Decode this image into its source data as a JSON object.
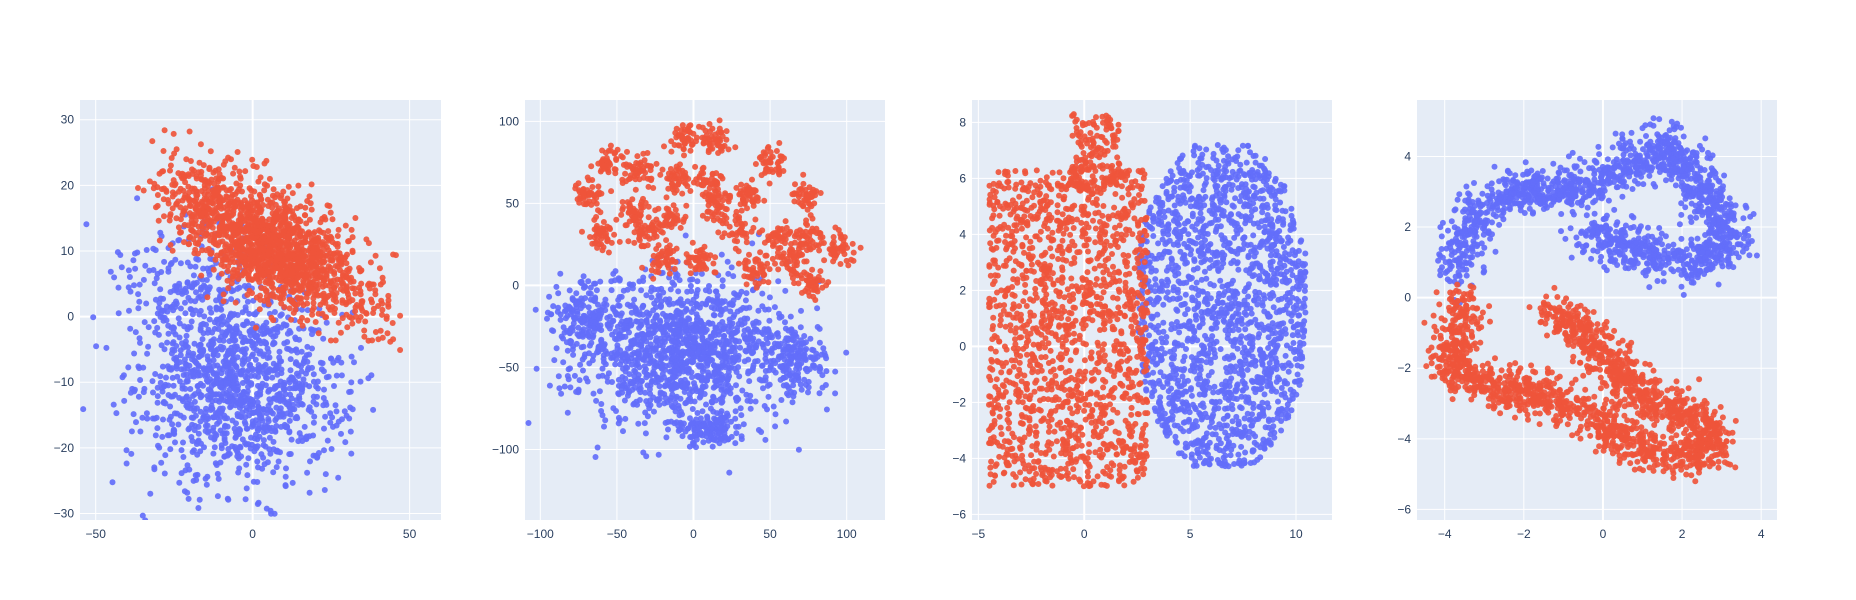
{
  "colors": {
    "plot_bg": "#e5ecf6",
    "grid": "#ffffff",
    "tick_text": "#2a3f5f",
    "class_a": "#636efa",
    "class_b": "#ef553b"
  },
  "chart_data": [
    {
      "type": "scatter",
      "xlim": [
        -55,
        60
      ],
      "ylim": [
        -31,
        33
      ],
      "xticks": [
        -50,
        0,
        50
      ],
      "xtick_labels": [
        "−50",
        "0",
        "50"
      ],
      "yticks": [
        -30,
        -20,
        -10,
        0,
        10,
        20,
        30
      ],
      "ytick_labels": [
        "−30",
        "−20",
        "−10",
        "0",
        "10",
        "20",
        "30"
      ],
      "grid": true,
      "series": [
        {
          "color_key": "class_a",
          "clusters": [
            {
              "cx": -3,
              "cy": -11,
              "sx": 16,
              "sy": 7,
              "n": 1100
            },
            {
              "cx": -18,
              "cy": 4,
              "sx": 13,
              "sy": 6,
              "n": 260
            }
          ]
        },
        {
          "color_key": "class_b",
          "clusters": [
            {
              "cx": 8,
              "cy": 10,
              "sx": 12,
              "sy": 4.5,
              "rho": -0.45,
              "n": 1200
            },
            {
              "cx": -13,
              "cy": 17,
              "sx": 9,
              "sy": 4,
              "rho": -0.3,
              "n": 320
            },
            {
              "cx": 33,
              "cy": 2,
              "sx": 7,
              "sy": 3,
              "rho": -0.5,
              "n": 80
            }
          ]
        }
      ]
    },
    {
      "type": "scatter",
      "xlim": [
        -110,
        125
      ],
      "ylim": [
        -143,
        113
      ],
      "xticks": [
        -100,
        -50,
        0,
        50,
        100
      ],
      "xtick_labels": [
        "−100",
        "−50",
        "0",
        "50",
        "100"
      ],
      "yticks": [
        -100,
        -50,
        0,
        50,
        100
      ],
      "ytick_labels": [
        "−100",
        "−50",
        "0",
        "50",
        "100"
      ],
      "grid": true,
      "series": [
        {
          "color_key": "class_a",
          "clusters": [
            {
              "cx": -5,
              "cy": -40,
              "sx": 36,
              "sy": 22,
              "n": 1300
            },
            {
              "cx": -72,
              "cy": -20,
              "sx": 10,
              "sy": 12,
              "n": 150
            },
            {
              "cx": 65,
              "cy": -45,
              "sx": 10,
              "sy": 10,
              "n": 120
            },
            {
              "cx": 10,
              "cy": -88,
              "sx": 12,
              "sy": 5,
              "n": 120
            }
          ]
        },
        {
          "color_key": "class_b",
          "blobs": {
            "centers": [
              [
                -5,
                90
              ],
              [
                15,
                88
              ],
              [
                -55,
                75
              ],
              [
                -35,
                70
              ],
              [
                -12,
                65
              ],
              [
                10,
                62
              ],
              [
                50,
                75
              ],
              [
                -70,
                55
              ],
              [
                -40,
                45
              ],
              [
                -15,
                40
              ],
              [
                15,
                48
              ],
              [
                35,
                55
              ],
              [
                73,
                55
              ],
              [
                -60,
                30
              ],
              [
                -30,
                32
              ],
              [
                30,
                35
              ],
              [
                55,
                28
              ],
              [
                75,
                28
              ],
              [
                95,
                22
              ],
              [
                -20,
                15
              ],
              [
                5,
                15
              ],
              [
                40,
                10
              ],
              [
                65,
                15
              ],
              [
                78,
                0
              ]
            ],
            "s": 5,
            "n": 45
          }
        }
      ]
    },
    {
      "type": "scatter",
      "xlim": [
        -5.3,
        11.7
      ],
      "ylim": [
        -6.2,
        8.8
      ],
      "xticks": [
        -5,
        0,
        5,
        10
      ],
      "xtick_labels": [
        "−5",
        "0",
        "5",
        "10"
      ],
      "yticks": [
        -6,
        -4,
        -2,
        0,
        2,
        4,
        6,
        8
      ],
      "ytick_labels": [
        "−6",
        "−4",
        "−2",
        "0",
        "2",
        "4",
        "6",
        "8"
      ],
      "grid": true,
      "series": [
        {
          "color_key": "class_a",
          "uniform": [
            {
              "x0": 2.5,
              "x1": 10.5,
              "y0": -4.3,
              "y1": 7.2,
              "n": 1700,
              "ellipse": true
            }
          ]
        },
        {
          "color_key": "class_b",
          "uniform": [
            {
              "x0": -4.5,
              "x1": 3,
              "y0": -5,
              "y1": 6.3,
              "n": 1500,
              "ellipse": false
            },
            {
              "x0": -0.6,
              "x1": 1.7,
              "y0": 5.5,
              "y1": 8.3,
              "n": 160,
              "ellipse": false
            }
          ]
        }
      ]
    },
    {
      "type": "scatter",
      "xlim": [
        -4.7,
        4.4
      ],
      "ylim": [
        -6.3,
        5.6
      ],
      "xticks": [
        -4,
        -2,
        0,
        2,
        4
      ],
      "xtick_labels": [
        "−4",
        "−2",
        "0",
        "2",
        "4"
      ],
      "yticks": [
        -6,
        -4,
        -2,
        0,
        2,
        4
      ],
      "ytick_labels": [
        "−6",
        "−4",
        "−2",
        "0",
        "2",
        "4"
      ],
      "grid": true,
      "series": [
        {
          "color_key": "class_a",
          "path": {
            "points": [
              [
                -3.8,
                0.6
              ],
              [
                -3.3,
                2.2
              ],
              [
                -2.4,
                3.0
              ],
              [
                -1.0,
                3.0
              ],
              [
                0.5,
                3.6
              ],
              [
                1.6,
                4.4
              ],
              [
                2.4,
                3.2
              ],
              [
                3.3,
                1.6
              ],
              [
                2.2,
                0.9
              ],
              [
                0.8,
                1.4
              ],
              [
                -0.5,
                1.9
              ]
            ],
            "s": 0.32,
            "n": 1600
          }
        },
        {
          "color_key": "class_b",
          "path": {
            "points": [
              [
                -3.6,
                0.0
              ],
              [
                -3.7,
                -1.0
              ],
              [
                -3.8,
                -2.0
              ],
              [
                -2.8,
                -2.6
              ],
              [
                -1.6,
                -2.7
              ],
              [
                -0.4,
                -3.3
              ],
              [
                0.9,
                -4.2
              ],
              [
                2.0,
                -4.6
              ],
              [
                2.9,
                -4.2
              ],
              [
                2.4,
                -3.4
              ],
              [
                1.2,
                -2.9
              ],
              [
                0.3,
                -2.0
              ],
              [
                -0.6,
                -0.8
              ],
              [
                -1.3,
                -0.3
              ]
            ],
            "s": 0.3,
            "n": 1700
          }
        }
      ]
    }
  ]
}
